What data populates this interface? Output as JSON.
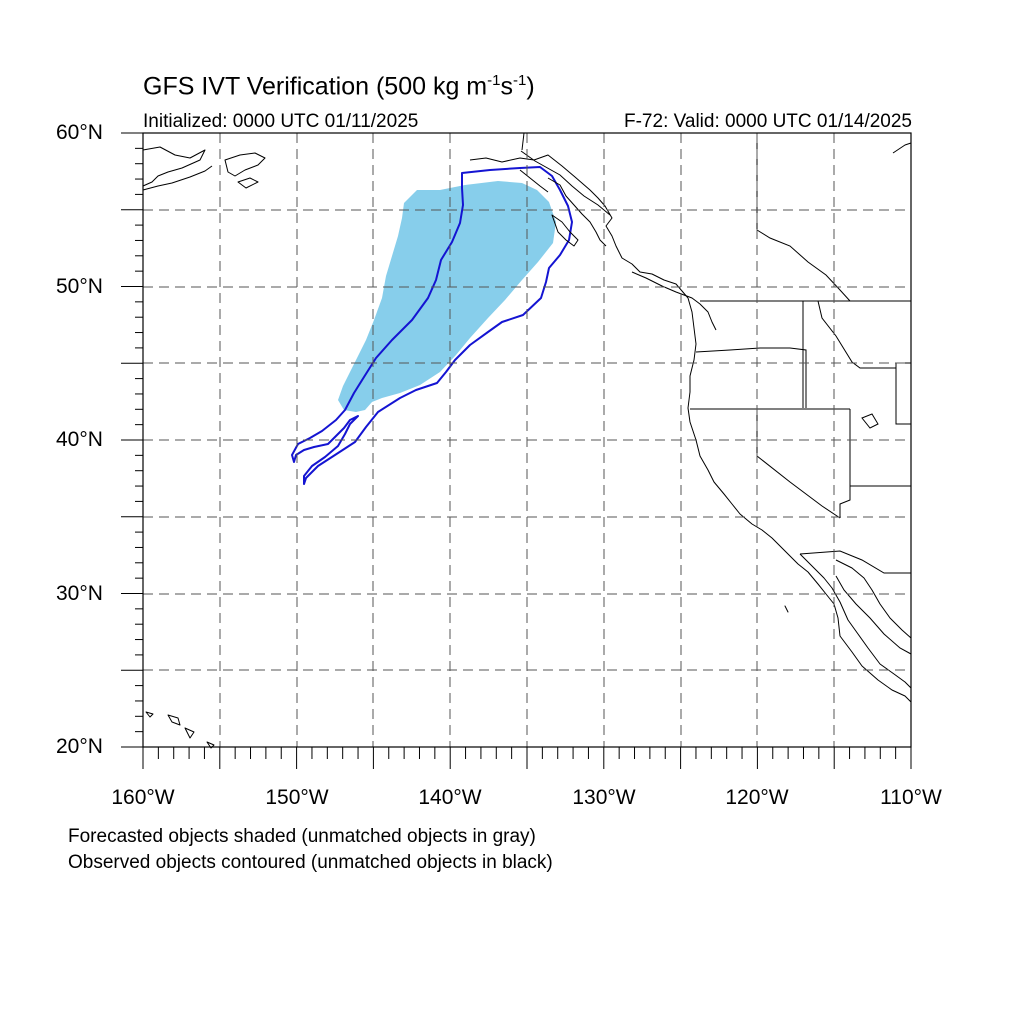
{
  "title": {
    "main": "GFS IVT Verification (500 kg m",
    "exp1": "-1",
    "mid": "s",
    "exp2": "-1",
    "end": ")"
  },
  "initialized": "Initialized: 0000 UTC 01/11/2025",
  "valid": "F-72: Valid: 0000 UTC 01/14/2025",
  "lat_labels": [
    "60°N",
    "50°N",
    "40°N",
    "30°N",
    "20°N"
  ],
  "lon_labels": [
    "160°W",
    "150°W",
    "140°W",
    "130°W",
    "120°W",
    "110°W"
  ],
  "notes": [
    "Forecasted objects shaded (unmatched objects in gray)",
    "Observed objects contoured (unmatched objects in black)"
  ],
  "map_extent": {
    "lon": [
      -160,
      -110
    ],
    "lat": [
      20,
      60
    ]
  },
  "colors": {
    "forecast_fill": "#87ceeb",
    "observed_contour": "#1414d2",
    "coastline": "#000000",
    "grid": "#555555"
  }
}
